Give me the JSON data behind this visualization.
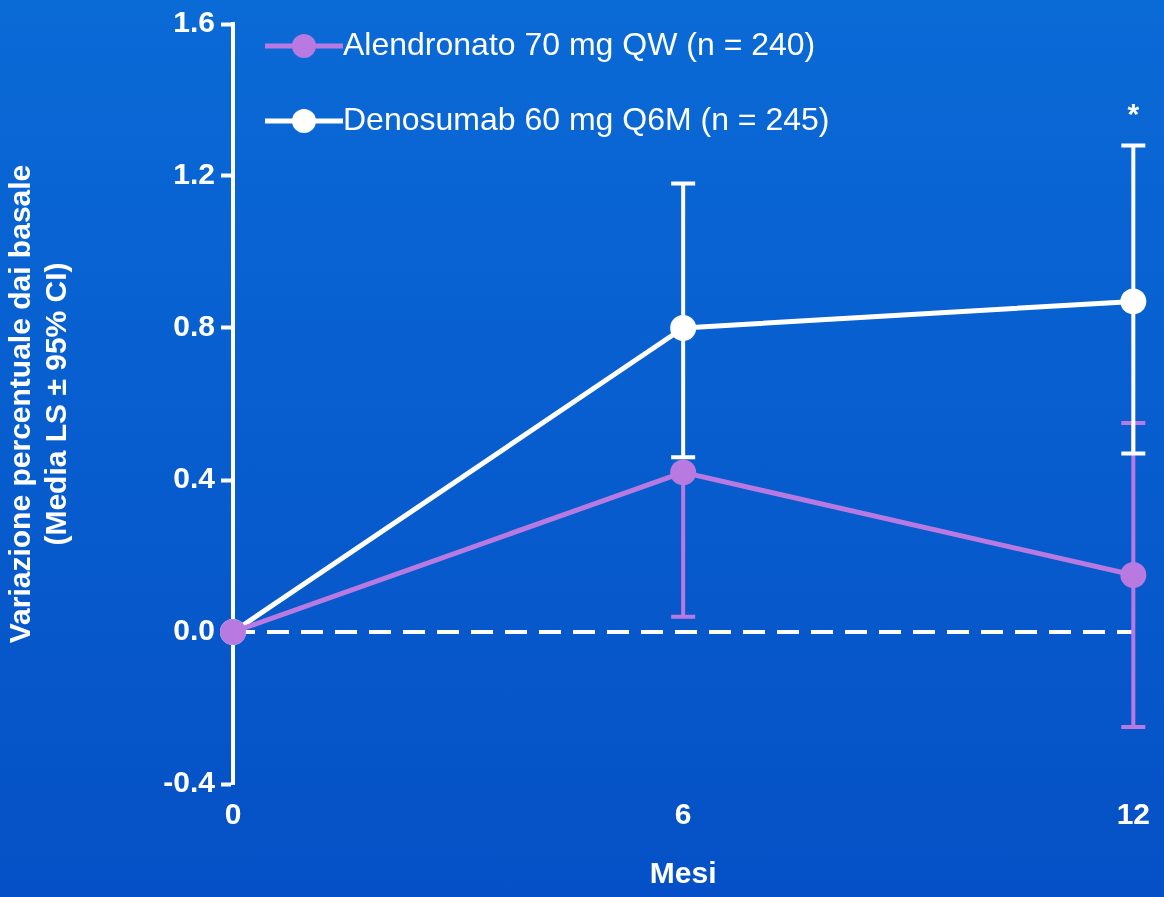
{
  "chart_data": {
    "type": "line",
    "xlabel": "Mesi",
    "ylabel": "Variazione percentuale dai basale\n(Media LS ± 95% CI)",
    "x": [
      0,
      6,
      12
    ],
    "xlim": [
      0,
      12
    ],
    "xticks": [
      0,
      6,
      12
    ],
    "ylim": [
      -0.4,
      1.6
    ],
    "yticks": [
      {
        "value": -0.4,
        "label": "-0.4"
      },
      {
        "value": 0,
        "label": "0.0"
      },
      {
        "value": 0.4,
        "label": "0.4"
      },
      {
        "value": 0.8,
        "label": "0.8"
      },
      {
        "value": 1.2,
        "label": "1.2"
      },
      {
        "value": 1.6,
        "label": "1.6"
      }
    ],
    "series": [
      {
        "name": "Alendronato 70 mg QW (n = 240)",
        "color": "#b87ae0",
        "values": [
          0,
          0.42,
          0.15
        ],
        "errors": [
          null,
          [
            0.04,
            0.42
          ],
          [
            -0.25,
            0.55
          ]
        ]
      },
      {
        "name": "Denosumab 60 mg Q6M (n = 245)",
        "color": "#ffffff",
        "values": [
          0,
          0.8,
          0.87
        ],
        "errors": [
          null,
          [
            0.46,
            1.18
          ],
          [
            0.47,
            1.28
          ]
        ]
      }
    ],
    "ref_lines": [
      {
        "axis": "y",
        "value": 0,
        "color": "#ffffff",
        "line_style": "dashed"
      }
    ],
    "annotations": [
      "*"
    ],
    "marker": "circle",
    "grid": false,
    "legend": "top left"
  }
}
